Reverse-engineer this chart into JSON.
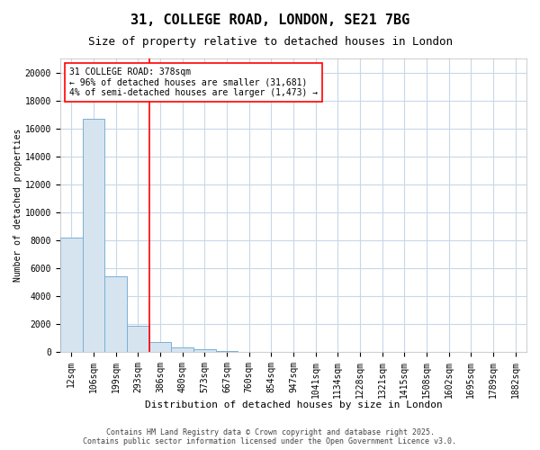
{
  "title": "31, COLLEGE ROAD, LONDON, SE21 7BG",
  "subtitle": "Size of property relative to detached houses in London",
  "xlabel": "Distribution of detached houses by size in London",
  "ylabel": "Number of detached properties",
  "bar_color": "#d6e4f0",
  "bar_edge_color": "#7bafd4",
  "bar_edge_width": 0.7,
  "background_color": "#ffffff",
  "grid_color": "#c8d8e8",
  "categories": [
    "12sqm",
    "106sqm",
    "199sqm",
    "293sqm",
    "386sqm",
    "480sqm",
    "573sqm",
    "667sqm",
    "760sqm",
    "854sqm",
    "947sqm",
    "1041sqm",
    "1134sqm",
    "1228sqm",
    "1321sqm",
    "1415sqm",
    "1508sqm",
    "1602sqm",
    "1695sqm",
    "1789sqm",
    "1882sqm"
  ],
  "values": [
    8200,
    16700,
    5400,
    1900,
    750,
    350,
    200,
    100,
    50,
    0,
    0,
    0,
    0,
    0,
    0,
    0,
    0,
    0,
    0,
    0,
    0
  ],
  "ylim": [
    0,
    21000
  ],
  "yticks": [
    0,
    2000,
    4000,
    6000,
    8000,
    10000,
    12000,
    14000,
    16000,
    18000,
    20000
  ],
  "red_line_index": 4,
  "annotation_text": "31 COLLEGE ROAD: 378sqm\n← 96% of detached houses are smaller (31,681)\n4% of semi-detached houses are larger (1,473) →",
  "footer_text": "Contains HM Land Registry data © Crown copyright and database right 2025.\nContains public sector information licensed under the Open Government Licence v3.0.",
  "title_fontsize": 11,
  "subtitle_fontsize": 9,
  "annotation_fontsize": 7,
  "ylabel_fontsize": 7,
  "xlabel_fontsize": 8,
  "footer_fontsize": 6,
  "tick_fontsize": 7
}
